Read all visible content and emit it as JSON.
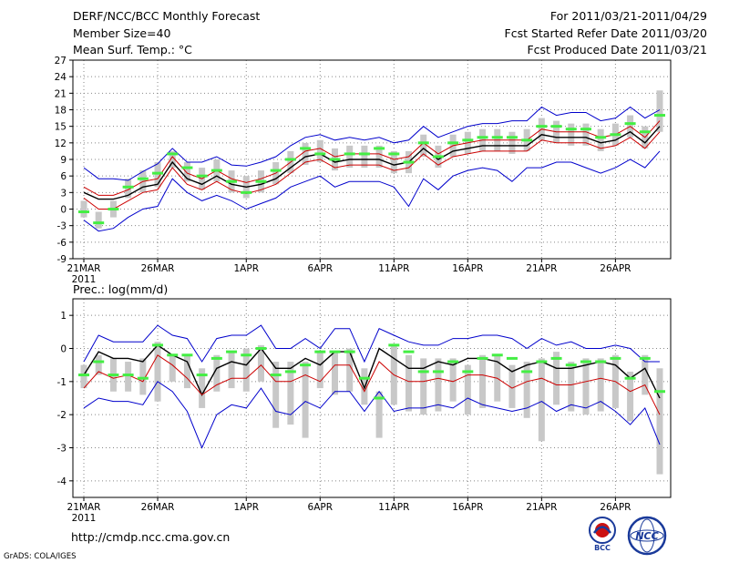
{
  "header": {
    "title": "DERF/NCC/BCC Monthly Forecast",
    "member_size": "Member Size=40",
    "variable": "Mean Surf. Temp.: °C",
    "period": "For 2011/03/21-2011/04/29",
    "started": "Fcst Started Refer Date 2011/03/20",
    "produced": "Fcst Produced Date 2011/03/21"
  },
  "footer": {
    "url": "http://cmdp.ncc.cma.gov.cn",
    "credit": "GrADS: COLA/IGES",
    "logo_left_text": "BCC",
    "logo_right_text": "NCC"
  },
  "colors": {
    "ensemble_mean": "#000000",
    "member_band": "#cc0000",
    "envelope": "#0000cc",
    "climatology": "#44ee44",
    "box": "#c8c8c8"
  },
  "chart_data": [
    {
      "type": "line",
      "title": "Mean Surf. Temp.: °C",
      "x_label_positions": [
        1,
        6,
        12,
        17,
        22,
        27,
        32,
        37
      ],
      "x_tick_labels": [
        "21MAR",
        "26MAR",
        "1APR",
        "6APR",
        "11APR",
        "16APR",
        "21APR",
        "26APR"
      ],
      "year_label": "2011",
      "ylim": [
        -9,
        27
      ],
      "y_ticks": [
        -9,
        -6,
        -3,
        0,
        3,
        6,
        9,
        12,
        15,
        18,
        21,
        24,
        27
      ],
      "x": [
        1,
        2,
        3,
        4,
        5,
        6,
        7,
        8,
        9,
        10,
        11,
        12,
        13,
        14,
        15,
        16,
        17,
        18,
        19,
        20,
        21,
        22,
        23,
        24,
        25,
        26,
        27,
        28,
        29,
        30,
        31,
        32,
        33,
        34,
        35,
        36,
        37,
        38,
        39,
        40
      ],
      "series": [
        {
          "name": "upper envelope",
          "values": [
            7.5,
            5.5,
            5.5,
            5.2,
            6.8,
            8.2,
            11.0,
            8.5,
            8.5,
            9.5,
            8.0,
            7.8,
            8.5,
            9.5,
            11.5,
            13.0,
            13.5,
            12.5,
            13.0,
            12.5,
            13.0,
            12.0,
            12.5,
            15.0,
            13.0,
            14.0,
            15.0,
            15.5,
            15.5,
            16.0,
            16.0,
            18.5,
            17.0,
            17.5,
            17.5,
            16.0,
            16.5,
            18.5,
            16.5,
            18.0
          ]
        },
        {
          "name": "upper member band",
          "values": [
            4.0,
            2.5,
            2.5,
            3.5,
            5.0,
            5.5,
            9.5,
            6.5,
            5.5,
            7.0,
            5.5,
            4.8,
            5.5,
            6.5,
            8.5,
            10.5,
            11.0,
            9.5,
            10.0,
            10.0,
            10.0,
            9.0,
            9.5,
            12.0,
            10.0,
            11.5,
            12.0,
            12.5,
            12.5,
            12.5,
            12.5,
            14.5,
            14.0,
            14.0,
            14.0,
            13.0,
            13.5,
            15.0,
            13.0,
            16.0
          ]
        },
        {
          "name": "ensemble mean",
          "values": [
            3.0,
            1.8,
            1.8,
            2.5,
            4.0,
            4.5,
            8.5,
            5.5,
            4.5,
            6.0,
            4.5,
            4.0,
            4.5,
            5.5,
            7.5,
            9.5,
            10.0,
            8.5,
            9.0,
            9.0,
            9.0,
            8.0,
            8.5,
            11.0,
            9.0,
            10.5,
            11.0,
            11.5,
            11.5,
            11.5,
            11.5,
            13.5,
            13.0,
            13.0,
            13.0,
            12.0,
            12.5,
            14.0,
            12.0,
            15.0
          ]
        },
        {
          "name": "lower member band",
          "values": [
            2.0,
            0.0,
            0.0,
            1.5,
            3.0,
            3.5,
            7.5,
            4.5,
            3.5,
            5.0,
            3.5,
            2.8,
            3.5,
            4.5,
            6.5,
            8.5,
            9.0,
            7.5,
            8.0,
            8.0,
            8.0,
            7.0,
            7.5,
            10.0,
            8.0,
            9.5,
            10.0,
            10.5,
            10.5,
            10.5,
            10.5,
            12.5,
            12.0,
            12.0,
            12.0,
            11.0,
            11.5,
            13.0,
            11.0,
            14.0
          ]
        },
        {
          "name": "lower envelope",
          "values": [
            -2.0,
            -4.0,
            -3.5,
            -1.5,
            0.0,
            0.5,
            5.5,
            3.0,
            1.5,
            2.5,
            1.5,
            0.0,
            1.0,
            2.0,
            4.0,
            5.0,
            6.0,
            4.0,
            5.0,
            5.0,
            5.0,
            4.0,
            0.5,
            5.5,
            3.5,
            6.0,
            7.0,
            7.5,
            7.0,
            5.0,
            7.5,
            7.5,
            8.5,
            8.5,
            7.5,
            6.5,
            7.5,
            9.0,
            7.5,
            10.5
          ]
        },
        {
          "name": "climatology",
          "values": [
            -0.5,
            -2.5,
            0.0,
            4.0,
            5.5,
            6.5,
            10.0,
            7.5,
            6.0,
            7.0,
            5.0,
            3.0,
            5.0,
            7.0,
            9.0,
            11.0,
            10.0,
            9.0,
            10.0,
            10.0,
            11.0,
            10.0,
            8.5,
            12.0,
            9.5,
            12.0,
            12.5,
            13.0,
            13.0,
            13.0,
            12.5,
            15.0,
            15.0,
            14.5,
            14.5,
            13.0,
            13.5,
            15.5,
            14.0,
            17.0
          ]
        }
      ],
      "box_ranges": [
        [
          -1.5,
          1.5
        ],
        [
          -3.5,
          -0.5
        ],
        [
          -1.5,
          1.5
        ],
        [
          2.0,
          5.5
        ],
        [
          3.0,
          7.0
        ],
        [
          4.0,
          8.5
        ],
        [
          7.5,
          10.5
        ],
        [
          5.0,
          8.5
        ],
        [
          3.5,
          7.5
        ],
        [
          5.0,
          9.0
        ],
        [
          3.0,
          7.0
        ],
        [
          2.0,
          6.0
        ],
        [
          3.0,
          7.0
        ],
        [
          4.5,
          8.5
        ],
        [
          6.5,
          10.5
        ],
        [
          8.0,
          12.0
        ],
        [
          8.5,
          12.5
        ],
        [
          7.0,
          11.0
        ],
        [
          7.5,
          11.5
        ],
        [
          7.5,
          11.5
        ],
        [
          7.5,
          11.5
        ],
        [
          6.5,
          10.5
        ],
        [
          6.5,
          10.5
        ],
        [
          9.5,
          13.5
        ],
        [
          7.5,
          11.5
        ],
        [
          9.5,
          13.5
        ],
        [
          10.0,
          14.0
        ],
        [
          10.5,
          14.5
        ],
        [
          10.5,
          14.5
        ],
        [
          10.0,
          14.0
        ],
        [
          10.5,
          14.5
        ],
        [
          12.5,
          16.5
        ],
        [
          12.0,
          16.0
        ],
        [
          11.5,
          15.5
        ],
        [
          11.5,
          15.5
        ],
        [
          10.5,
          14.5
        ],
        [
          11.5,
          15.5
        ],
        [
          13.0,
          17.0
        ],
        [
          11.0,
          15.0
        ],
        [
          14.0,
          21.5
        ]
      ]
    },
    {
      "type": "line",
      "title": "Prec.: log(mm/d)",
      "x_label_positions": [
        1,
        6,
        12,
        17,
        22,
        27,
        32,
        37
      ],
      "x_tick_labels": [
        "21MAR",
        "26MAR",
        "1APR",
        "6APR",
        "11APR",
        "16APR",
        "21APR",
        "26APR"
      ],
      "year_label": "2011",
      "ylim": [
        -4.5,
        1.5
      ],
      "y_ticks": [
        -4,
        -3,
        -2,
        -1,
        0,
        1
      ],
      "x": [
        1,
        2,
        3,
        4,
        5,
        6,
        7,
        8,
        9,
        10,
        11,
        12,
        13,
        14,
        15,
        16,
        17,
        18,
        19,
        20,
        21,
        22,
        23,
        24,
        25,
        26,
        27,
        28,
        29,
        30,
        31,
        32,
        33,
        34,
        35,
        36,
        37,
        38,
        39,
        40
      ],
      "series": [
        {
          "name": "upper envelope",
          "values": [
            -0.4,
            0.4,
            0.2,
            0.2,
            0.2,
            0.7,
            0.4,
            0.3,
            -0.4,
            0.3,
            0.4,
            0.4,
            0.7,
            0.0,
            0.0,
            0.3,
            0.0,
            0.6,
            0.6,
            -0.4,
            0.6,
            0.4,
            0.2,
            0.1,
            0.1,
            0.3,
            0.3,
            0.4,
            0.4,
            0.3,
            0.0,
            0.3,
            0.1,
            0.2,
            0.0,
            0.0,
            0.1,
            0.0,
            -0.4,
            -0.4
          ]
        },
        {
          "name": "ensemble mean",
          "values": [
            -0.8,
            -0.1,
            -0.3,
            -0.3,
            -0.4,
            0.1,
            -0.2,
            -0.4,
            -1.4,
            -0.6,
            -0.4,
            -0.5,
            -0.0,
            -0.6,
            -0.6,
            -0.3,
            -0.5,
            -0.1,
            -0.1,
            -1.2,
            0.0,
            -0.3,
            -0.6,
            -0.6,
            -0.4,
            -0.5,
            -0.3,
            -0.3,
            -0.4,
            -0.7,
            -0.5,
            -0.4,
            -0.6,
            -0.6,
            -0.5,
            -0.4,
            -0.5,
            -0.9,
            -0.6,
            -1.5
          ]
        },
        {
          "name": "lower member band",
          "values": [
            -1.2,
            -0.7,
            -0.9,
            -0.8,
            -1.0,
            -0.2,
            -0.5,
            -0.9,
            -1.4,
            -1.1,
            -0.9,
            -0.9,
            -0.5,
            -1.0,
            -1.0,
            -0.8,
            -1.0,
            -0.5,
            -0.5,
            -1.3,
            -0.4,
            -0.8,
            -1.0,
            -1.0,
            -0.9,
            -1.0,
            -0.8,
            -0.8,
            -0.9,
            -1.2,
            -1.0,
            -0.9,
            -1.1,
            -1.1,
            -1.0,
            -0.9,
            -1.0,
            -1.3,
            -1.1,
            -2.0
          ]
        },
        {
          "name": "lower envelope",
          "values": [
            -1.8,
            -1.5,
            -1.6,
            -1.6,
            -1.7,
            -1.0,
            -1.3,
            -1.9,
            -3.0,
            -2.0,
            -1.7,
            -1.8,
            -1.2,
            -1.9,
            -2.0,
            -1.6,
            -1.8,
            -1.3,
            -1.3,
            -1.9,
            -1.3,
            -1.9,
            -1.8,
            -1.8,
            -1.7,
            -1.8,
            -1.5,
            -1.7,
            -1.8,
            -1.9,
            -1.8,
            -1.6,
            -1.9,
            -1.7,
            -1.8,
            -1.6,
            -1.9,
            -2.3,
            -1.8,
            -2.9
          ]
        },
        {
          "name": "climatology",
          "values": [
            -0.8,
            -0.4,
            -0.8,
            -0.8,
            -0.9,
            0.1,
            -0.2,
            -0.2,
            -0.8,
            -0.3,
            -0.1,
            -0.2,
            0.0,
            -0.8,
            -0.7,
            -0.5,
            -0.1,
            -0.1,
            -0.1,
            -0.9,
            -1.5,
            0.1,
            -0.1,
            -0.7,
            -0.7,
            -0.4,
            -0.7,
            -0.3,
            -0.2,
            -0.3,
            -0.7,
            -0.4,
            -0.3,
            -0.5,
            -0.4,
            -0.4,
            -0.3,
            -0.9,
            -0.3,
            -1.3
          ]
        }
      ],
      "box_ranges": [
        [
          -1.2,
          -0.5
        ],
        [
          -0.8,
          -0.2
        ],
        [
          -1.3,
          -0.3
        ],
        [
          -1.3,
          -0.4
        ],
        [
          -1.4,
          -0.3
        ],
        [
          -1.6,
          0.2
        ],
        [
          -1.0,
          -0.2
        ],
        [
          -1.2,
          -0.2
        ],
        [
          -1.8,
          -0.6
        ],
        [
          -1.3,
          -0.2
        ],
        [
          -1.2,
          -0.1
        ],
        [
          -1.3,
          0.0
        ],
        [
          -1.0,
          0.1
        ],
        [
          -2.4,
          -0.4
        ],
        [
          -2.3,
          -0.4
        ],
        [
          -2.7,
          -0.4
        ],
        [
          -1.2,
          -0.1
        ],
        [
          -1.4,
          -0.1
        ],
        [
          -1.3,
          0.0
        ],
        [
          -1.7,
          -0.6
        ],
        [
          -2.7,
          -1.3
        ],
        [
          -1.7,
          0.1
        ],
        [
          -1.9,
          -0.2
        ],
        [
          -2.0,
          -0.3
        ],
        [
          -1.9,
          -0.3
        ],
        [
          -1.6,
          -0.3
        ],
        [
          -2.0,
          -0.5
        ],
        [
          -1.8,
          -0.2
        ],
        [
          -1.6,
          -0.2
        ],
        [
          -1.8,
          -0.5
        ],
        [
          -2.1,
          -0.4
        ],
        [
          -2.8,
          -0.3
        ],
        [
          -1.7,
          -0.1
        ],
        [
          -1.9,
          -0.4
        ],
        [
          -2.0,
          -0.3
        ],
        [
          -1.9,
          -0.3
        ],
        [
          -1.8,
          -0.2
        ],
        [
          -2.2,
          -0.7
        ],
        [
          -1.4,
          -0.2
        ],
        [
          -3.8,
          -0.6
        ]
      ]
    }
  ]
}
